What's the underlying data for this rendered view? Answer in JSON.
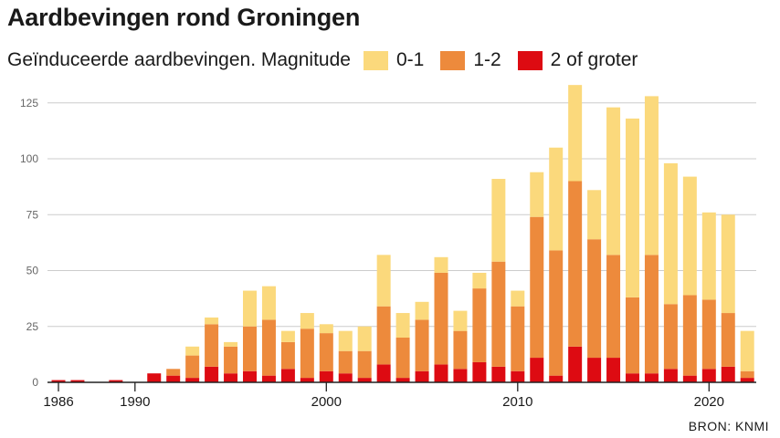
{
  "header": {
    "title": "Aardbevingen rond Groningen",
    "subtitle": "Geïnduceerde aardbevingen. Magnitude"
  },
  "source": "BRON: KNMI",
  "colors": {
    "mag_0_1": "#fbd97c",
    "mag_1_2": "#ed8a3c",
    "mag_2_plus": "#dd0b12",
    "grid": "#cccccc",
    "axis": "#222222"
  },
  "chart_data": {
    "type": "bar",
    "stacked": true,
    "title": "Aardbevingen rond Groningen",
    "subtitle": "Geïnduceerde aardbevingen. Magnitude",
    "xlabel": "",
    "ylabel": "",
    "ylim": [
      0,
      135
    ],
    "yticks": [
      0,
      25,
      50,
      75,
      100,
      125
    ],
    "xticks": [
      1986,
      1990,
      2000,
      2010,
      2020
    ],
    "legend_position": "top",
    "grid": "horizontal",
    "x": [
      1986,
      1987,
      1988,
      1989,
      1990,
      1991,
      1992,
      1993,
      1994,
      1995,
      1996,
      1997,
      1998,
      1999,
      2000,
      2001,
      2002,
      2003,
      2004,
      2005,
      2006,
      2007,
      2008,
      2009,
      2010,
      2011,
      2012,
      2013,
      2014,
      2015,
      2016,
      2017,
      2018,
      2019,
      2020,
      2021,
      2022
    ],
    "series": [
      {
        "name": "2 of groter",
        "color": "#dd0b12",
        "values": [
          1,
          1,
          0,
          1,
          0,
          4,
          3,
          2,
          7,
          4,
          5,
          3,
          6,
          2,
          5,
          4,
          2,
          8,
          2,
          5,
          8,
          6,
          9,
          7,
          5,
          11,
          3,
          16,
          11,
          11,
          4,
          4,
          6,
          3,
          6,
          7,
          2
        ]
      },
      {
        "name": "1-2",
        "color": "#ed8a3c",
        "values": [
          0,
          0,
          0,
          0,
          0,
          0,
          3,
          10,
          19,
          12,
          20,
          25,
          12,
          22,
          17,
          10,
          12,
          26,
          18,
          23,
          41,
          17,
          33,
          47,
          29,
          63,
          56,
          74,
          53,
          46,
          34,
          53,
          29,
          36,
          31,
          24,
          3
        ]
      },
      {
        "name": "0-1",
        "color": "#fbd97c",
        "values": [
          0,
          0,
          0,
          0,
          0,
          0,
          0,
          4,
          3,
          2,
          16,
          15,
          5,
          7,
          4,
          9,
          11,
          23,
          11,
          8,
          7,
          9,
          7,
          37,
          7,
          20,
          46,
          43,
          22,
          66,
          80,
          71,
          63,
          53,
          39,
          44,
          18
        ]
      }
    ]
  }
}
